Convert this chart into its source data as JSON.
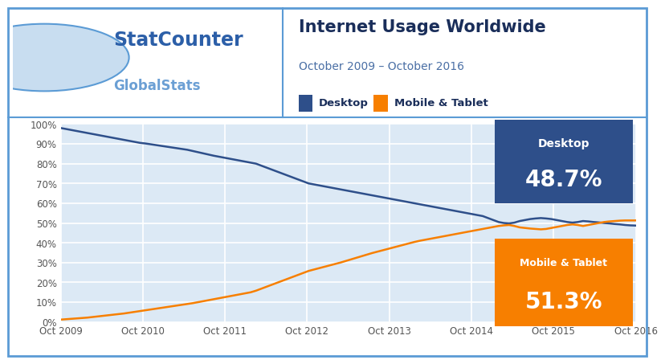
{
  "title": "Internet Usage Worldwide",
  "subtitle": "October 2009 – October 2016",
  "legend_labels": [
    "Desktop",
    "Mobile & Tablet"
  ],
  "desktop_color": "#2e4f8a",
  "mobile_color": "#f77f00",
  "bg_color": "#dce9f5",
  "plot_bg": "#dce9f5",
  "outer_bg": "#ffffff",
  "title_color": "#1a2e5a",
  "subtitle_color": "#4a6fa5",
  "border_color": "#5b9bd5",
  "ytick_labels": [
    "0%",
    "10%",
    "20%",
    "30%",
    "40%",
    "50%",
    "60%",
    "70%",
    "80%",
    "90%",
    "100%"
  ],
  "xtick_labels": [
    "Oct 2009",
    "Oct 2010",
    "Oct 2011",
    "Oct 2012",
    "Oct 2013",
    "Oct 2014",
    "Oct 2015",
    "Oct 2016"
  ],
  "desktop_final": "48.7%",
  "mobile_final": "51.3%",
  "desktop_data": [
    98.0,
    97.5,
    97.0,
    96.5,
    96.0,
    95.5,
    95.0,
    94.5,
    94.0,
    93.5,
    93.0,
    92.5,
    92.0,
    91.5,
    91.0,
    90.5,
    90.2,
    89.8,
    89.4,
    89.0,
    88.6,
    88.2,
    87.8,
    87.4,
    87.0,
    86.4,
    85.8,
    85.2,
    84.6,
    84.0,
    83.5,
    83.0,
    82.5,
    82.0,
    81.5,
    81.0,
    80.5,
    80.0,
    79.0,
    78.0,
    77.0,
    76.0,
    75.0,
    74.0,
    73.0,
    72.0,
    71.0,
    70.0,
    69.5,
    69.0,
    68.5,
    68.0,
    67.5,
    67.0,
    66.5,
    66.0,
    65.5,
    65.0,
    64.5,
    64.0,
    63.5,
    63.0,
    62.5,
    62.0,
    61.5,
    61.0,
    60.5,
    60.0,
    59.5,
    59.0,
    58.5,
    58.0,
    57.5,
    57.0,
    56.5,
    56.0,
    55.5,
    55.0,
    54.5,
    54.0,
    53.5,
    52.5,
    51.5,
    50.5,
    50.0,
    49.8,
    50.2,
    51.0,
    51.5,
    52.0,
    52.3,
    52.5,
    52.3,
    52.0,
    51.5,
    51.0,
    50.5,
    50.2,
    50.5,
    51.0,
    50.8,
    50.5,
    50.3,
    50.0,
    49.8,
    49.5,
    49.3,
    49.0,
    48.8,
    48.7
  ],
  "mobile_data": [
    1.2,
    1.4,
    1.6,
    1.8,
    2.0,
    2.2,
    2.5,
    2.8,
    3.1,
    3.4,
    3.7,
    4.0,
    4.3,
    4.7,
    5.1,
    5.5,
    5.9,
    6.3,
    6.7,
    7.1,
    7.5,
    7.9,
    8.3,
    8.7,
    9.1,
    9.5,
    10.0,
    10.5,
    11.0,
    11.5,
    12.0,
    12.5,
    13.0,
    13.5,
    14.0,
    14.5,
    15.0,
    15.8,
    16.8,
    17.8,
    18.8,
    19.8,
    20.8,
    21.8,
    22.8,
    23.8,
    24.8,
    25.8,
    26.5,
    27.2,
    27.9,
    28.6,
    29.3,
    30.0,
    30.8,
    31.6,
    32.4,
    33.2,
    34.0,
    34.8,
    35.5,
    36.2,
    36.9,
    37.6,
    38.3,
    39.0,
    39.7,
    40.4,
    41.0,
    41.5,
    42.0,
    42.5,
    43.0,
    43.5,
    44.0,
    44.5,
    45.0,
    45.5,
    46.0,
    46.5,
    47.0,
    47.5,
    48.0,
    48.5,
    48.8,
    49.0,
    48.5,
    47.8,
    47.5,
    47.2,
    47.0,
    46.8,
    47.0,
    47.5,
    48.0,
    48.5,
    49.0,
    49.3,
    49.0,
    48.5,
    49.0,
    49.5,
    50.0,
    50.5,
    50.8,
    51.0,
    51.2,
    51.3,
    51.3,
    51.3
  ]
}
